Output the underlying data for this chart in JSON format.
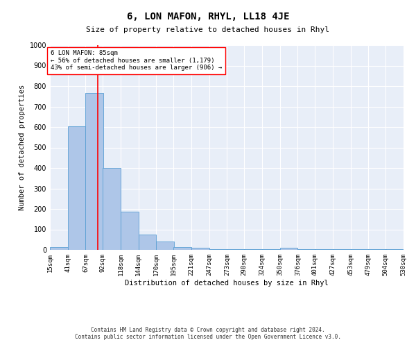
{
  "title": "6, LON MAFON, RHYL, LL18 4JE",
  "subtitle": "Size of property relative to detached houses in Rhyl",
  "xlabel": "Distribution of detached houses by size in Rhyl",
  "ylabel": "Number of detached properties",
  "bin_edges": [
    15,
    41,
    67,
    92,
    118,
    144,
    170,
    195,
    221,
    247,
    273,
    298,
    324,
    350,
    376,
    401,
    427,
    453,
    479,
    504,
    530
  ],
  "bar_heights": [
    15,
    605,
    765,
    400,
    185,
    75,
    40,
    15,
    10,
    5,
    5,
    2,
    2,
    10,
    2,
    2,
    2,
    2,
    2,
    2
  ],
  "bar_color": "#aec6e8",
  "bar_edge_color": "#5a9fd4",
  "vline_x": 85,
  "vline_color": "red",
  "annotation_text": "6 LON MAFON: 85sqm\n← 56% of detached houses are smaller (1,179)\n43% of semi-detached houses are larger (906) →",
  "annotation_box_color": "white",
  "annotation_box_edge": "red",
  "ylim": [
    0,
    1000
  ],
  "background_color": "#e8eef8",
  "grid_color": "white",
  "footer_line1": "Contains HM Land Registry data © Crown copyright and database right 2024.",
  "footer_line2": "Contains public sector information licensed under the Open Government Licence v3.0.",
  "tick_labels": [
    "15sqm",
    "41sqm",
    "67sqm",
    "92sqm",
    "118sqm",
    "144sqm",
    "170sqm",
    "195sqm",
    "221sqm",
    "247sqm",
    "273sqm",
    "298sqm",
    "324sqm",
    "350sqm",
    "376sqm",
    "401sqm",
    "427sqm",
    "453sqm",
    "479sqm",
    "504sqm",
    "530sqm"
  ],
  "title_fontsize": 10,
  "subtitle_fontsize": 8,
  "xlabel_fontsize": 7.5,
  "ylabel_fontsize": 7.5,
  "tick_fontsize": 6.5,
  "ytick_fontsize": 7,
  "annotation_fontsize": 6.5,
  "footer_fontsize": 5.5
}
